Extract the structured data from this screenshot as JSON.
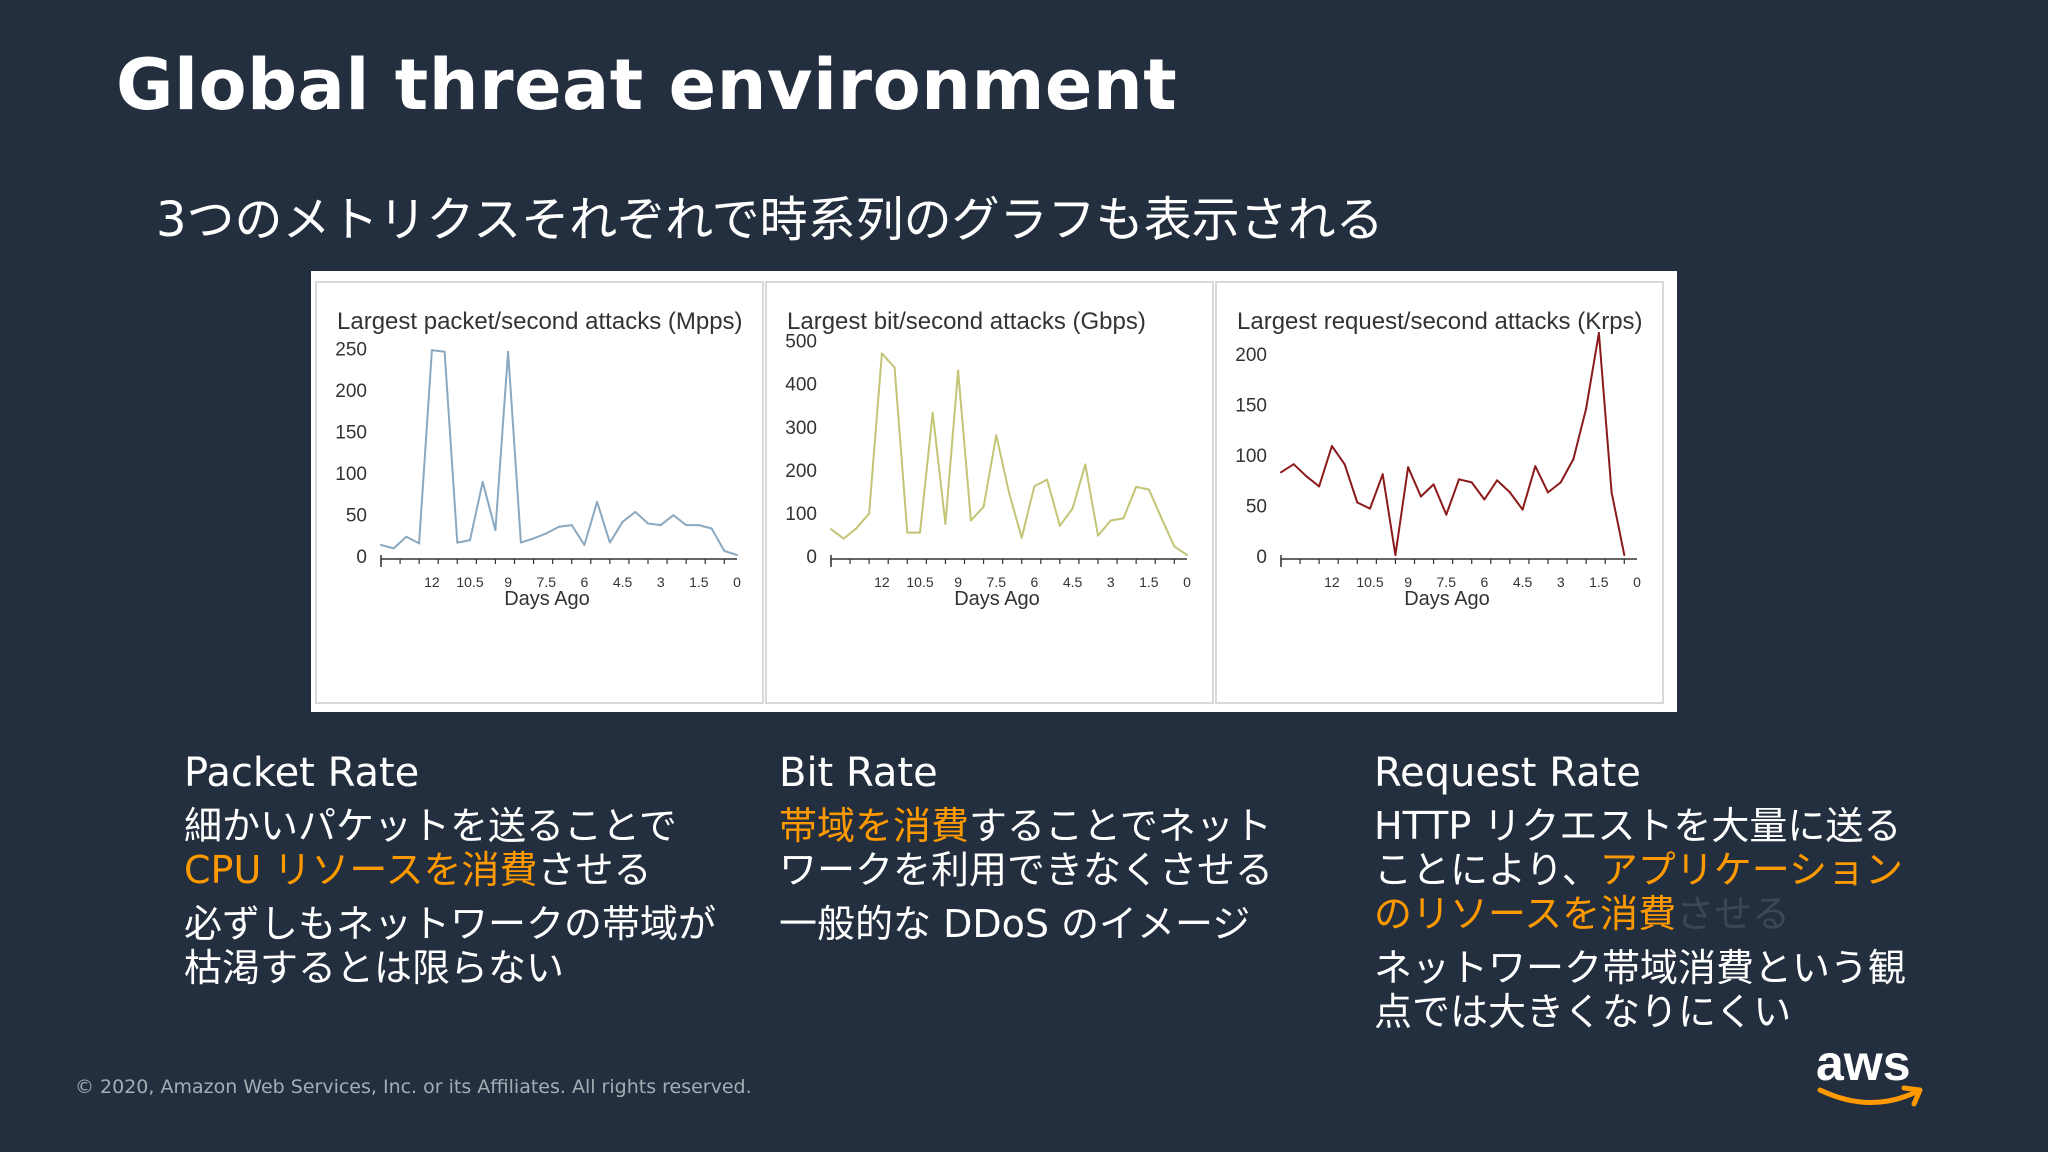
{
  "slide": {
    "title": "Global threat environment",
    "subtitle": "3つのメトリクスそれぞれで時系列のグラフも表示される",
    "copyright": "© 2020, Amazon Web Services, Inc. or its Affiliates. All rights reserved.",
    "logo_text": "aws"
  },
  "chart_data": [
    {
      "type": "line",
      "title": "Largest packet/second attacks (Mpps)",
      "xlabel": "Days Ago",
      "ylabel": "",
      "color": "#8aa9c1",
      "xlim": [
        14,
        0
      ],
      "ylim": [
        0,
        270
      ],
      "xticks": [
        12,
        10.5,
        9,
        7.5,
        6,
        4.5,
        3,
        1.5,
        0
      ],
      "yticks": [
        0,
        50,
        100,
        150,
        200,
        250
      ],
      "x": [
        14,
        13.5,
        13,
        12.5,
        12,
        11.5,
        11,
        10.5,
        10,
        9.5,
        9,
        8.5,
        8,
        7.5,
        7,
        6.5,
        6,
        5.5,
        5,
        4.5,
        4,
        3.5,
        3,
        2.5,
        2,
        1.5,
        1,
        0.5,
        0
      ],
      "values": [
        12,
        8,
        22,
        14,
        247,
        245,
        15,
        18,
        88,
        30,
        245,
        15,
        20,
        26,
        34,
        36,
        12,
        64,
        15,
        40,
        52,
        38,
        36,
        48,
        36,
        36,
        32,
        5,
        0
      ]
    },
    {
      "type": "line",
      "title": "Largest bit/second attacks (Gbps)",
      "xlabel": "Days Ago",
      "ylabel": "",
      "color": "#c4c477",
      "xlim": [
        14,
        0
      ],
      "ylim": [
        0,
        520
      ],
      "xticks": [
        12,
        10.5,
        9,
        7.5,
        6,
        4.5,
        3,
        1.5,
        0
      ],
      "yticks": [
        0,
        100,
        200,
        300,
        400,
        500
      ],
      "x": [
        14,
        13.5,
        13,
        12.5,
        12,
        11.5,
        11,
        10.5,
        10,
        9.5,
        9,
        8.5,
        8,
        7.5,
        7,
        6.5,
        6,
        5.5,
        5,
        4.5,
        4,
        3.5,
        3,
        2.5,
        2,
        1.5,
        1,
        0.5,
        0
      ],
      "values": [
        60,
        38,
        62,
        96,
        468,
        435,
        52,
        52,
        330,
        72,
        428,
        80,
        112,
        278,
        145,
        40,
        160,
        175,
        68,
        108,
        210,
        45,
        80,
        85,
        158,
        152,
        85,
        20,
        0
      ]
    },
    {
      "type": "line",
      "title": "Largest request/second attacks (Krps)",
      "xlabel": "Days Ago",
      "ylabel": "",
      "color": "#8b1a1a",
      "xlim": [
        14,
        0
      ],
      "ylim": [
        0,
        222
      ],
      "xticks": [
        12,
        10.5,
        9,
        7.5,
        6,
        4.5,
        3,
        1.5,
        0
      ],
      "yticks": [
        0,
        50,
        100,
        150,
        200
      ],
      "x": [
        14,
        13.5,
        13,
        12.5,
        12,
        11.5,
        11,
        10.5,
        10,
        9.5,
        9,
        8.5,
        8,
        7.5,
        7,
        6.5,
        6,
        5.5,
        5,
        4.5,
        4,
        3.5,
        3,
        2.5,
        2,
        1.5,
        1,
        0.5
      ],
      "values": [
        82,
        90,
        78,
        68,
        108,
        90,
        52,
        46,
        80,
        0,
        87,
        58,
        70,
        40,
        75,
        72,
        55,
        74,
        62,
        45,
        88,
        62,
        72,
        95,
        145,
        220,
        62,
        0
      ]
    }
  ],
  "columns": [
    {
      "heading": "Packet Rate",
      "lines": [
        [
          {
            "text": "細かいパケットを送ることで",
            "hl": false
          }
        ],
        [
          {
            "text": "CPU リソースを消費",
            "hl": true
          },
          {
            "text": "させる",
            "hl": false
          }
        ],
        [
          {
            "text": "必ずしもネットワークの帯域が",
            "hl": false
          }
        ],
        [
          {
            "text": "枯渇するとは限らない",
            "hl": false
          }
        ]
      ]
    },
    {
      "heading": "Bit Rate",
      "lines": [
        [
          {
            "text": "帯域を消費",
            "hl": true
          },
          {
            "text": "することでネット",
            "hl": false
          }
        ],
        [
          {
            "text": "ワークを利用できなくさせる",
            "hl": false
          }
        ],
        [
          {
            "text": "一般的な DDoS のイメージ",
            "hl": false
          }
        ]
      ]
    },
    {
      "heading": "Request Rate",
      "lines": [
        [
          {
            "text": "HTTP リクエストを大量に送る",
            "hl": false
          }
        ],
        [
          {
            "text": "ことにより、",
            "hl": false
          },
          {
            "text": "アプリケーション",
            "hl": true
          }
        ],
        [
          {
            "text": "のリソースを消費",
            "hl": true
          },
          {
            "text": "させる",
            "dim": true
          }
        ],
        [
          {
            "text": "ネットワーク帯域消費という観",
            "hl": false
          }
        ],
        [
          {
            "text": "点では大きくなりにくい",
            "hl": false
          }
        ]
      ]
    }
  ]
}
